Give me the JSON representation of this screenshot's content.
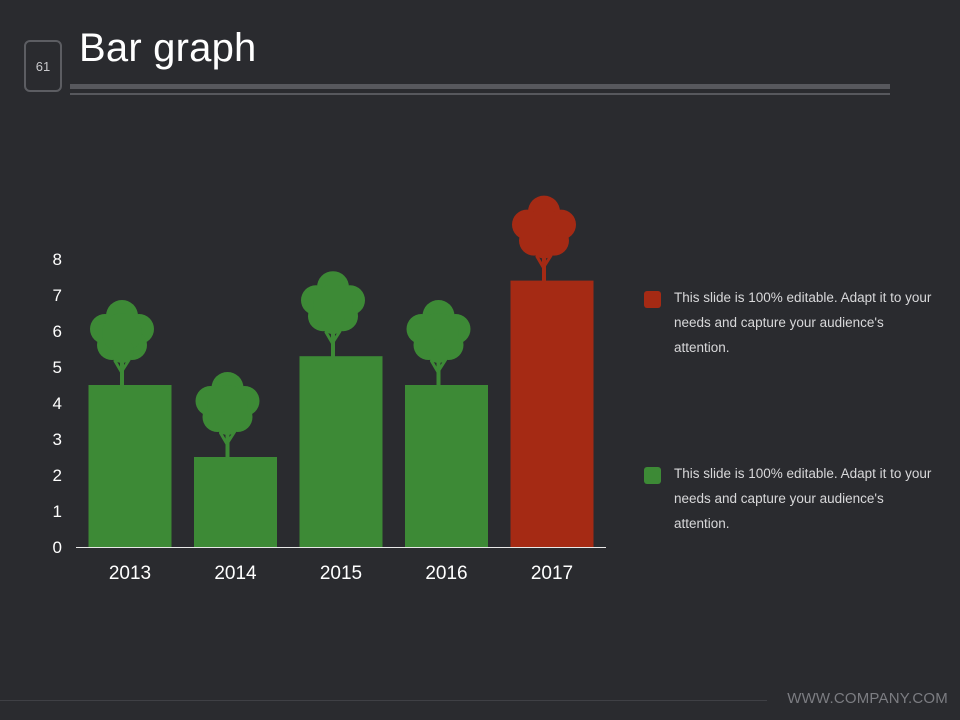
{
  "slide": {
    "page_number": "61",
    "title": "Bar graph",
    "footer": "WWW.COMPANY.COM"
  },
  "legend": [
    {
      "color": "#a52a14",
      "text": "This slide is 100% editable. Adapt it to your needs and capture your audience's attention."
    },
    {
      "color": "#3d8a36",
      "text": "This slide is 100% editable. Adapt it to your needs and capture your audience's attention."
    }
  ],
  "chart_data": {
    "type": "bar",
    "categories": [
      "2013",
      "2014",
      "2015",
      "2016",
      "2017"
    ],
    "values": [
      4.5,
      2.5,
      5.3,
      4.5,
      7.4
    ],
    "colors": [
      "#3d8a36",
      "#3d8a36",
      "#3d8a36",
      "#3d8a36",
      "#a52a14"
    ],
    "marker_icon": "tree-icon",
    "yticks": [
      "0",
      "1",
      "2",
      "3",
      "4",
      "5",
      "6",
      "7",
      "8"
    ],
    "ylim": [
      0,
      8
    ],
    "grid": false,
    "legend_position": "right",
    "title": "",
    "xlabel": "",
    "ylabel": ""
  }
}
